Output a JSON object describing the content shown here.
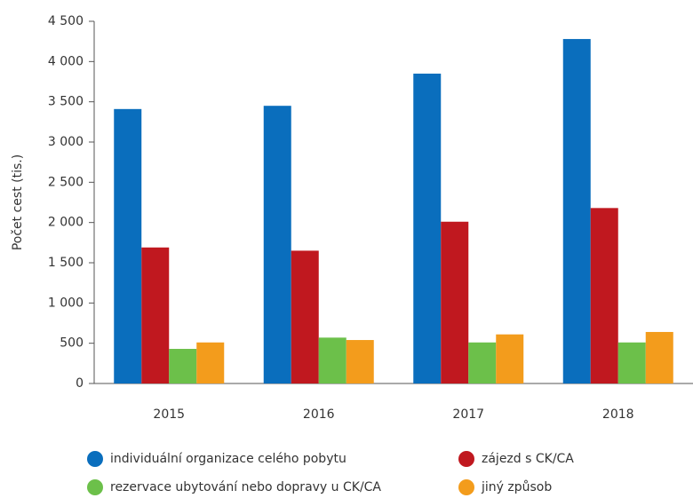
{
  "chart_data": {
    "type": "bar",
    "y_label": "Počet cest (tis.)",
    "categories": [
      "2015",
      "2016",
      "2017",
      "2018"
    ],
    "series": [
      {
        "name": "individuální organizace celého pobytu",
        "color": "#0a6ebd",
        "values": [
          3410,
          3450,
          3850,
          4280
        ]
      },
      {
        "name": "zájezd s CK/CA",
        "color": "#c0181f",
        "values": [
          1690,
          1650,
          2010,
          2180
        ]
      },
      {
        "name": "rezervace ubytování nebo dopravy u CK/CA",
        "color": "#6cc04a",
        "values": [
          430,
          570,
          510,
          510
        ]
      },
      {
        "name": "jiný způsob",
        "color": "#f39c1c",
        "values": [
          510,
          540,
          610,
          640
        ]
      }
    ],
    "ylim": [
      0,
      4500
    ],
    "yticks": [
      0,
      500,
      {
        "value": 1000,
        "label": "1 000"
      },
      {
        "value": 1500,
        "label": "1 500"
      },
      {
        "value": 2000,
        "label": "2 000"
      },
      {
        "value": 2500,
        "label": "2 500"
      },
      {
        "value": 3000,
        "label": "3 000"
      },
      {
        "value": 3500,
        "label": "3 500"
      },
      {
        "value": 4000,
        "label": "4 000"
      },
      {
        "value": 4500,
        "label": "4 500"
      }
    ],
    "grid": false
  }
}
